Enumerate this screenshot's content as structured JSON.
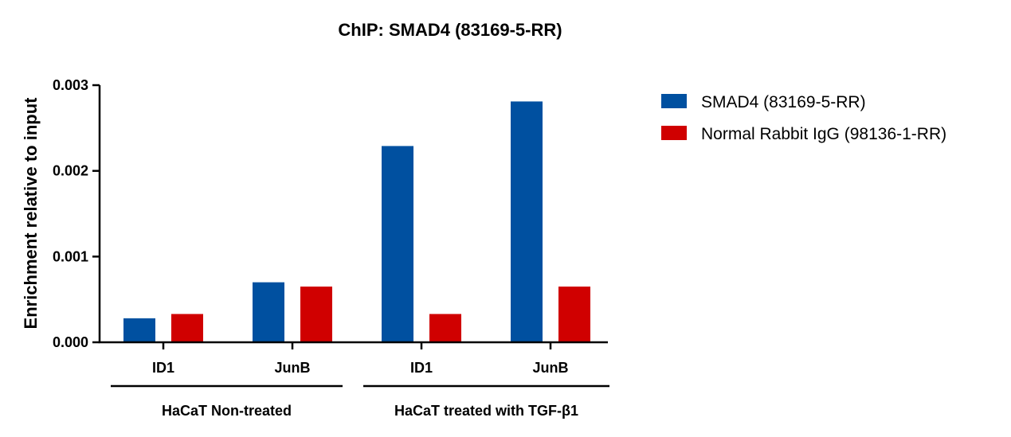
{
  "chart_data": {
    "type": "bar",
    "title": "ChIP: SMAD4 (83169-5-RR)",
    "xlabel": "",
    "ylabel": "Enrichment relative to input",
    "ylim": [
      0,
      0.003
    ],
    "yticks": [
      "0.000",
      "0.001",
      "0.002",
      "0.003"
    ],
    "ytick_values": [
      0,
      0.001,
      0.002,
      0.003
    ],
    "categories": [
      "ID1",
      "JunB",
      "ID1",
      "JunB"
    ],
    "groups": [
      {
        "label": "HaCaT Non-treated",
        "categories": [
          0,
          1
        ]
      },
      {
        "label": "HaCaT treated with TGF-β1",
        "categories": [
          2,
          3
        ]
      }
    ],
    "series": [
      {
        "name": "SMAD4 (83169-5-RR)",
        "color": "#0050a0",
        "values": [
          0.00028,
          0.0007,
          0.00229,
          0.00281
        ]
      },
      {
        "name": "Normal Rabbit IgG (98136-1-RR)",
        "color": "#d00000",
        "values": [
          0.00033,
          0.00065,
          0.00033,
          0.00065
        ]
      }
    ],
    "legend_position": "top-right",
    "grid": false
  }
}
